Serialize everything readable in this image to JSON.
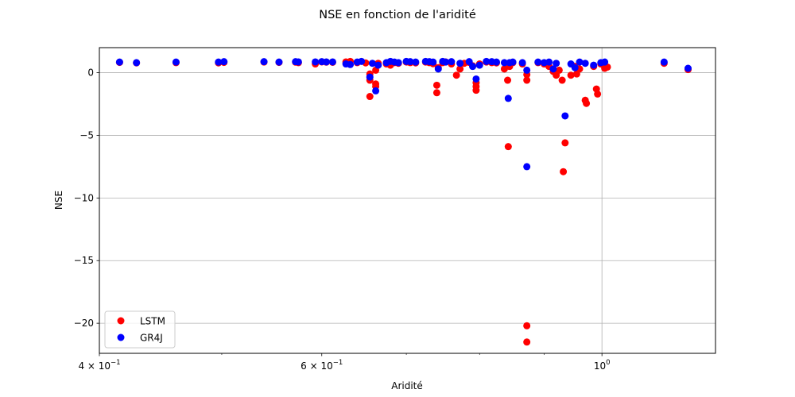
{
  "chart_data": {
    "type": "scatter",
    "title": "NSE en fonction de l'aridité",
    "xlabel": "Aridité",
    "ylabel": "NSE",
    "xscale": "log",
    "xlim": [
      0.4,
      1.23
    ],
    "ylim": [
      -22.4,
      2.0
    ],
    "grid": true,
    "legend_position": "lower-left",
    "x_tick_labels": [
      {
        "value": 0.4,
        "base": "4 × 10",
        "exp": "−1"
      },
      {
        "value": 0.6,
        "base": "6 × 10",
        "exp": "−1"
      },
      {
        "value": 1.0,
        "base": "10",
        "exp": "0"
      }
    ],
    "y_tick_labels": [
      {
        "value": 0,
        "label": "0"
      },
      {
        "value": -5,
        "label": "−5"
      },
      {
        "value": -10,
        "label": "−10"
      },
      {
        "value": -15,
        "label": "−15"
      },
      {
        "value": -20,
        "label": "−20"
      }
    ],
    "series": [
      {
        "name": "LSTM",
        "color": "#ff0000",
        "points": [
          [
            0.415,
            0.82
          ],
          [
            0.428,
            0.78
          ],
          [
            0.46,
            0.8
          ],
          [
            0.497,
            0.78
          ],
          [
            0.502,
            0.82
          ],
          [
            0.54,
            0.85
          ],
          [
            0.555,
            0.82
          ],
          [
            0.572,
            0.84
          ],
          [
            0.575,
            0.8
          ],
          [
            0.593,
            0.7
          ],
          [
            0.6,
            0.86
          ],
          [
            0.605,
            0.84
          ],
          [
            0.612,
            0.83
          ],
          [
            0.627,
            0.86
          ],
          [
            0.632,
            0.9
          ],
          [
            0.64,
            0.8
          ],
          [
            0.65,
            0.78
          ],
          [
            0.655,
            -0.1
          ],
          [
            0.655,
            -0.6
          ],
          [
            0.655,
            -1.9
          ],
          [
            0.662,
            -0.9
          ],
          [
            0.662,
            -1.1
          ],
          [
            0.662,
            0.2
          ],
          [
            0.665,
            0.75
          ],
          [
            0.675,
            0.7
          ],
          [
            0.68,
            0.6
          ],
          [
            0.685,
            0.8
          ],
          [
            0.69,
            0.75
          ],
          [
            0.7,
            0.85
          ],
          [
            0.705,
            0.8
          ],
          [
            0.712,
            0.78
          ],
          [
            0.725,
            0.85
          ],
          [
            0.73,
            0.8
          ],
          [
            0.735,
            0.72
          ],
          [
            0.74,
            -1.0
          ],
          [
            0.74,
            -1.6
          ],
          [
            0.742,
            0.4
          ],
          [
            0.748,
            0.8
          ],
          [
            0.752,
            0.86
          ],
          [
            0.76,
            0.7
          ],
          [
            0.767,
            -0.2
          ],
          [
            0.772,
            0.3
          ],
          [
            0.778,
            0.75
          ],
          [
            0.785,
            0.82
          ],
          [
            0.79,
            0.55
          ],
          [
            0.795,
            -0.8
          ],
          [
            0.795,
            -1.1
          ],
          [
            0.795,
            -1.4
          ],
          [
            0.8,
            0.7
          ],
          [
            0.81,
            0.85
          ],
          [
            0.818,
            0.8
          ],
          [
            0.825,
            0.78
          ],
          [
            0.837,
            0.3
          ],
          [
            0.842,
            -0.6
          ],
          [
            0.843,
            -5.9
          ],
          [
            0.845,
            0.5
          ],
          [
            0.85,
            0.8
          ],
          [
            0.865,
            0.7
          ],
          [
            0.872,
            -0.15
          ],
          [
            0.872,
            -0.6
          ],
          [
            0.872,
            -20.2
          ],
          [
            0.872,
            -21.5
          ],
          [
            0.89,
            0.8
          ],
          [
            0.9,
            0.7
          ],
          [
            0.908,
            0.5
          ],
          [
            0.915,
            0.1
          ],
          [
            0.92,
            -0.2
          ],
          [
            0.925,
            0.2
          ],
          [
            0.93,
            -0.6
          ],
          [
            0.932,
            -7.9
          ],
          [
            0.935,
            -5.6
          ],
          [
            0.945,
            -0.2
          ],
          [
            0.952,
            0.5
          ],
          [
            0.955,
            -0.1
          ],
          [
            0.96,
            0.3
          ],
          [
            0.97,
            -2.2
          ],
          [
            0.972,
            -2.45
          ],
          [
            0.985,
            0.5
          ],
          [
            0.99,
            -1.3
          ],
          [
            0.992,
            -1.7
          ],
          [
            0.998,
            0.7
          ],
          [
            1.005,
            0.35
          ],
          [
            1.01,
            0.45
          ],
          [
            1.12,
            0.75
          ],
          [
            1.17,
            0.25
          ]
        ]
      },
      {
        "name": "GR4J",
        "color": "#0000ff",
        "points": [
          [
            0.415,
            0.85
          ],
          [
            0.428,
            0.8
          ],
          [
            0.46,
            0.85
          ],
          [
            0.497,
            0.85
          ],
          [
            0.502,
            0.88
          ],
          [
            0.54,
            0.88
          ],
          [
            0.555,
            0.85
          ],
          [
            0.572,
            0.88
          ],
          [
            0.575,
            0.86
          ],
          [
            0.593,
            0.86
          ],
          [
            0.6,
            0.88
          ],
          [
            0.605,
            0.86
          ],
          [
            0.612,
            0.86
          ],
          [
            0.627,
            0.7
          ],
          [
            0.632,
            0.65
          ],
          [
            0.64,
            0.85
          ],
          [
            0.645,
            0.9
          ],
          [
            0.655,
            -0.35
          ],
          [
            0.658,
            0.75
          ],
          [
            0.662,
            -1.45
          ],
          [
            0.665,
            0.6
          ],
          [
            0.675,
            0.8
          ],
          [
            0.68,
            0.9
          ],
          [
            0.685,
            0.85
          ],
          [
            0.69,
            0.8
          ],
          [
            0.7,
            0.9
          ],
          [
            0.705,
            0.88
          ],
          [
            0.712,
            0.85
          ],
          [
            0.725,
            0.9
          ],
          [
            0.73,
            0.88
          ],
          [
            0.735,
            0.85
          ],
          [
            0.742,
            0.3
          ],
          [
            0.748,
            0.9
          ],
          [
            0.752,
            0.85
          ],
          [
            0.76,
            0.88
          ],
          [
            0.772,
            0.75
          ],
          [
            0.785,
            0.88
          ],
          [
            0.79,
            0.5
          ],
          [
            0.795,
            -0.5
          ],
          [
            0.8,
            0.6
          ],
          [
            0.81,
            0.9
          ],
          [
            0.818,
            0.88
          ],
          [
            0.825,
            0.85
          ],
          [
            0.837,
            0.8
          ],
          [
            0.843,
            -2.05
          ],
          [
            0.845,
            0.8
          ],
          [
            0.85,
            0.85
          ],
          [
            0.865,
            0.8
          ],
          [
            0.872,
            0.2
          ],
          [
            0.872,
            -7.5
          ],
          [
            0.89,
            0.85
          ],
          [
            0.9,
            0.8
          ],
          [
            0.908,
            0.85
          ],
          [
            0.915,
            0.3
          ],
          [
            0.92,
            0.75
          ],
          [
            0.935,
            -3.45
          ],
          [
            0.945,
            0.7
          ],
          [
            0.952,
            0.4
          ],
          [
            0.96,
            0.85
          ],
          [
            0.97,
            0.75
          ],
          [
            0.985,
            0.6
          ],
          [
            0.998,
            0.8
          ],
          [
            1.005,
            0.85
          ],
          [
            1.12,
            0.85
          ],
          [
            1.17,
            0.35
          ]
        ]
      }
    ]
  }
}
